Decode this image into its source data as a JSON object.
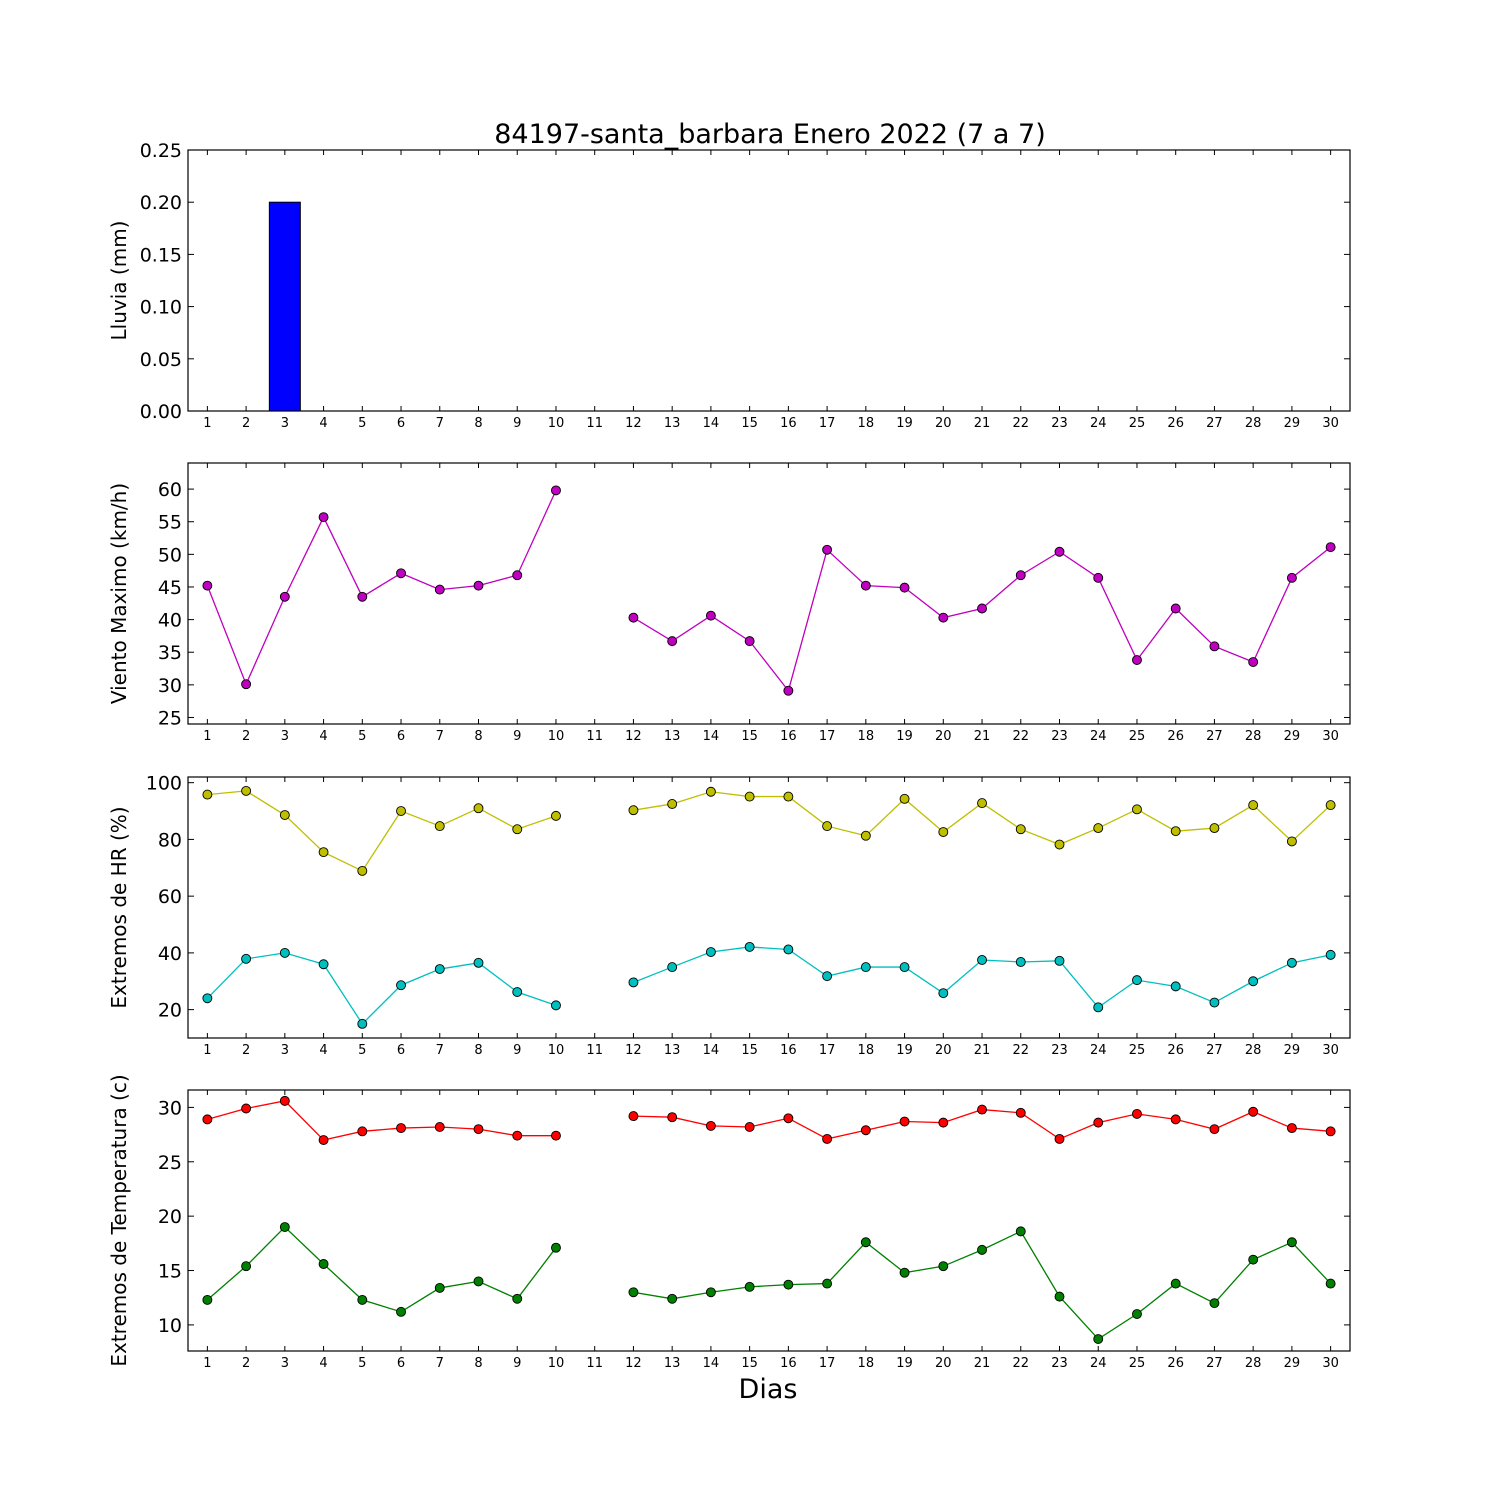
{
  "title": "84197-santa_barbara Enero 2022  (7 a 7)",
  "xlabel": "Dias",
  "chart_data": [
    {
      "type": "bar",
      "ylabel": "Lluvia (mm)",
      "ylim": [
        0,
        0.25
      ],
      "yticks": [
        0.0,
        0.05,
        0.1,
        0.15,
        0.2,
        0.25
      ],
      "ytick_labels": [
        "0.00",
        "0.05",
        "0.10",
        "0.15",
        "0.20",
        "0.25"
      ],
      "x": [
        1,
        2,
        3,
        4,
        5,
        6,
        7,
        8,
        9,
        10,
        11,
        12,
        13,
        14,
        15,
        16,
        17,
        18,
        19,
        20,
        21,
        22,
        23,
        24,
        25,
        26,
        27,
        28,
        29,
        30
      ],
      "series": [
        {
          "color": "#0000ff",
          "values": [
            0,
            0,
            0.2,
            0,
            0,
            0,
            0,
            0,
            0,
            0,
            null,
            0,
            0,
            0,
            0,
            0,
            0,
            0,
            0,
            0,
            0,
            0,
            0,
            0,
            0,
            0,
            0,
            0,
            0,
            0
          ]
        }
      ]
    },
    {
      "type": "line",
      "ylabel": "Viento Maximo (km/h)",
      "ylim": [
        24,
        64
      ],
      "yticks": [
        25,
        30,
        35,
        40,
        45,
        50,
        55,
        60
      ],
      "ytick_labels": [
        "25",
        "30",
        "35",
        "40",
        "45",
        "50",
        "55",
        "60"
      ],
      "x": [
        1,
        2,
        3,
        4,
        5,
        6,
        7,
        8,
        9,
        10,
        11,
        12,
        13,
        14,
        15,
        16,
        17,
        18,
        19,
        20,
        21,
        22,
        23,
        24,
        25,
        26,
        27,
        28,
        29,
        30
      ],
      "series": [
        {
          "color": "#bf00bf",
          "values": [
            45.2,
            30.1,
            43.5,
            55.7,
            43.5,
            47.1,
            44.6,
            45.2,
            46.8,
            59.8,
            null,
            40.3,
            36.7,
            40.6,
            36.7,
            29.1,
            50.7,
            45.2,
            44.9,
            40.3,
            41.7,
            46.8,
            50.4,
            46.4,
            33.8,
            41.7,
            35.9,
            33.5,
            46.4,
            51.1
          ]
        }
      ]
    },
    {
      "type": "line",
      "ylabel": "Extremos de HR (%)",
      "ylim": [
        10,
        102
      ],
      "yticks": [
        20,
        40,
        60,
        80,
        100
      ],
      "ytick_labels": [
        "20",
        "40",
        "60",
        "80",
        "100"
      ],
      "x": [
        1,
        2,
        3,
        4,
        5,
        6,
        7,
        8,
        9,
        10,
        11,
        12,
        13,
        14,
        15,
        16,
        17,
        18,
        19,
        20,
        21,
        22,
        23,
        24,
        25,
        26,
        27,
        28,
        29,
        30
      ],
      "series": [
        {
          "color": "#bfbf00",
          "values": [
            95.8,
            97.1,
            88.6,
            75.5,
            68.9,
            90.0,
            84.7,
            91.0,
            83.6,
            88.3,
            null,
            90.3,
            92.5,
            96.8,
            95.1,
            95.1,
            84.7,
            81.3,
            94.3,
            82.6,
            92.8,
            83.6,
            78.2,
            84.0,
            90.6,
            82.9,
            84.0,
            92.1,
            79.3,
            92.1
          ]
        },
        {
          "color": "#00bfbf",
          "values": [
            24.0,
            37.9,
            40.0,
            36.0,
            15.0,
            28.6,
            34.3,
            36.5,
            26.2,
            21.5,
            null,
            29.6,
            35.0,
            40.3,
            42.1,
            41.2,
            31.8,
            35.0,
            35.0,
            25.8,
            37.5,
            36.8,
            37.2,
            20.8,
            30.4,
            28.2,
            22.5,
            30.0,
            36.5,
            39.3
          ]
        }
      ]
    },
    {
      "type": "line",
      "ylabel": "Extremos de Temperatura (c)",
      "ylim": [
        7.6,
        31.6
      ],
      "yticks": [
        10,
        15,
        20,
        25,
        30
      ],
      "ytick_labels": [
        "10",
        "15",
        "20",
        "25",
        "30"
      ],
      "x": [
        1,
        2,
        3,
        4,
        5,
        6,
        7,
        8,
        9,
        10,
        11,
        12,
        13,
        14,
        15,
        16,
        17,
        18,
        19,
        20,
        21,
        22,
        23,
        24,
        25,
        26,
        27,
        28,
        29,
        30
      ],
      "series": [
        {
          "color": "#ff0000",
          "values": [
            28.9,
            29.9,
            30.6,
            27.0,
            27.8,
            28.1,
            28.2,
            28.0,
            27.4,
            27.4,
            null,
            29.2,
            29.1,
            28.3,
            28.2,
            29.0,
            27.1,
            27.9,
            28.7,
            28.6,
            29.8,
            29.5,
            27.1,
            28.6,
            29.4,
            28.9,
            28.0,
            29.6,
            28.1,
            27.8
          ]
        },
        {
          "color": "#008000",
          "values": [
            12.3,
            15.4,
            19.0,
            15.6,
            12.3,
            11.2,
            13.4,
            14.0,
            12.4,
            17.1,
            null,
            13.0,
            12.4,
            13.0,
            13.5,
            13.7,
            13.8,
            17.6,
            14.8,
            15.4,
            16.9,
            18.6,
            12.6,
            8.7,
            11.0,
            13.8,
            12.0,
            16.0,
            17.6,
            13.8
          ]
        }
      ]
    }
  ]
}
